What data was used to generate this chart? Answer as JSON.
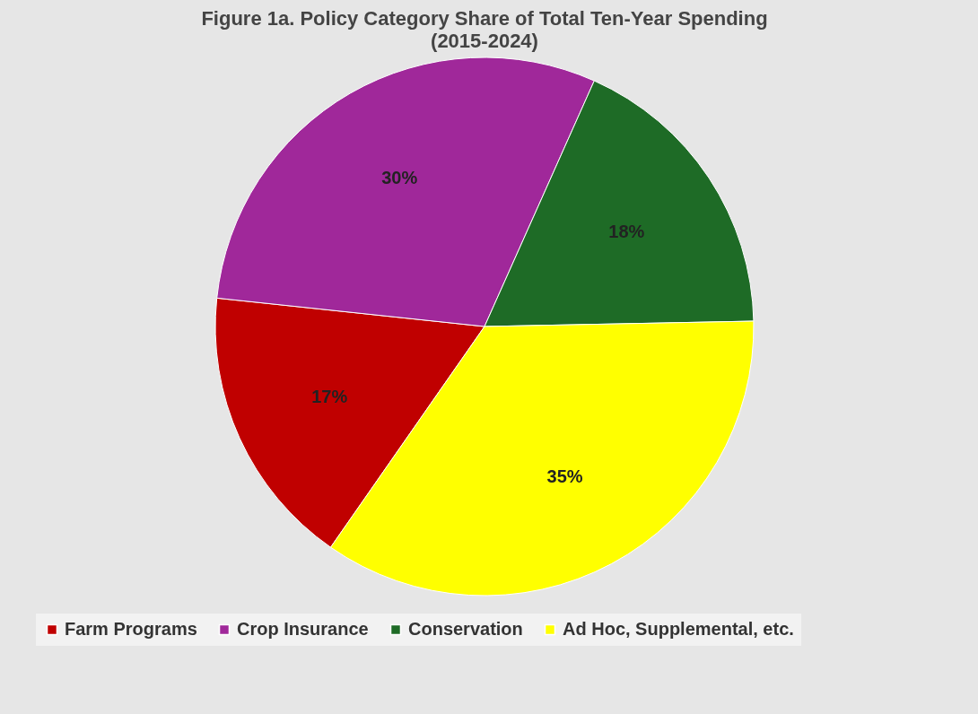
{
  "chart_data": {
    "type": "pie",
    "title": "Figure 1a. Policy Category Share of Total Ten-Year Spending",
    "subtitle": "(2015-2024)",
    "categories": [
      "Farm Programs",
      "Crop Insurance",
      "Conservation",
      "Ad Hoc, Supplemental, etc."
    ],
    "values": [
      17,
      30,
      18,
      35
    ],
    "colors": [
      "#c00000",
      "#a0289a",
      "#1e6b26",
      "#ffff00"
    ],
    "value_labels": [
      "17%",
      "30%",
      "18%",
      "35%"
    ],
    "legend": "bottom"
  }
}
